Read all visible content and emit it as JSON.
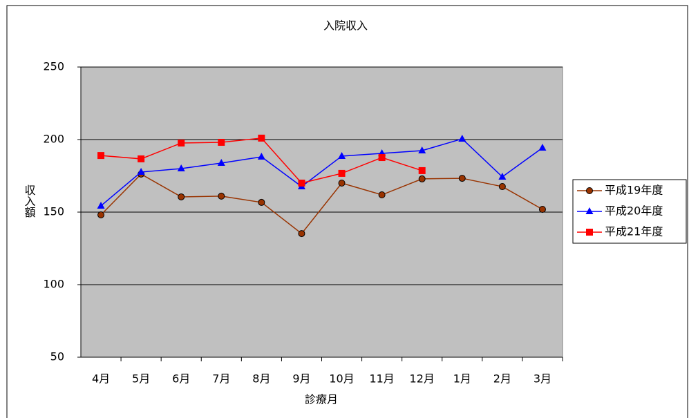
{
  "chart_data": {
    "type": "line",
    "title": "入院収入",
    "x_label": "診療月",
    "y_label": "収入額",
    "categories": [
      "4月",
      "5月",
      "6月",
      "7月",
      "8月",
      "9月",
      "10月",
      "11月",
      "12月",
      "1月",
      "2月",
      "3月"
    ],
    "series": [
      {
        "name": "平成19年度",
        "color": "#993300",
        "marker": "circle",
        "values": [
          148.1,
          176.2,
          160.5,
          161,
          156.7,
          135.2,
          170,
          161.9,
          172.9,
          173.3,
          167.6,
          151.9
        ]
      },
      {
        "name": "平成20年度",
        "color": "#0000ff",
        "marker": "triangle",
        "values": [
          154.3,
          177.6,
          180,
          183.8,
          188.1,
          167.6,
          188.6,
          190.5,
          192.4,
          200.5,
          174.3,
          194.3
        ]
      },
      {
        "name": "平成21年度",
        "color": "#ff0000",
        "marker": "square",
        "values": [
          189,
          186.7,
          197.6,
          198.1,
          201,
          170,
          176.7,
          187.6,
          178.6,
          null,
          null,
          null
        ]
      }
    ],
    "ylim": [
      50,
      250
    ],
    "yticks": [
      50,
      100,
      150,
      200,
      250
    ],
    "grid": true,
    "legend": "right"
  }
}
